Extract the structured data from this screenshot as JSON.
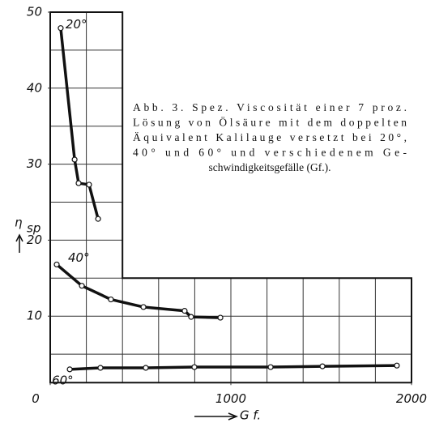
{
  "chart_data": {
    "type": "line",
    "y_label": "η",
    "y_label_sub": "sp",
    "x_label": "G f.",
    "caption": [
      "Abb. 3.  Spez. Viscosität einer 7 proz.",
      "Lösung von Ölsäure mit dem doppelten",
      "Äquivalent Kalilauge versetzt bei 20°,",
      "40° und 60° und verschiedenem Ge-",
      "schwindigkeitsgefälle (Gf.)."
    ],
    "xlim": [
      0,
      2000
    ],
    "ylim": [
      0,
      50
    ],
    "xticks": [
      0,
      1000,
      2000
    ],
    "yticks": [
      10,
      20,
      30,
      40,
      50
    ],
    "grid": true,
    "series": [
      {
        "name": "20°",
        "color": "#111111",
        "x": [
          58,
          135,
          157,
          215,
          265
        ],
        "values": [
          47.9,
          30.6,
          27.5,
          27.3,
          22.8
        ]
      },
      {
        "name": "40°",
        "color": "#111111",
        "x": [
          36,
          175,
          336,
          516,
          744,
          780,
          942
        ],
        "values": [
          16.8,
          14.0,
          12.2,
          11.2,
          10.7,
          9.9,
          9.8
        ]
      },
      {
        "name": "60°",
        "color": "#111111",
        "x": [
          108,
          278,
          529,
          798,
          1220,
          1507,
          1919
        ],
        "values": [
          3.0,
          3.2,
          3.2,
          3.3,
          3.3,
          3.4,
          3.5
        ]
      }
    ]
  }
}
